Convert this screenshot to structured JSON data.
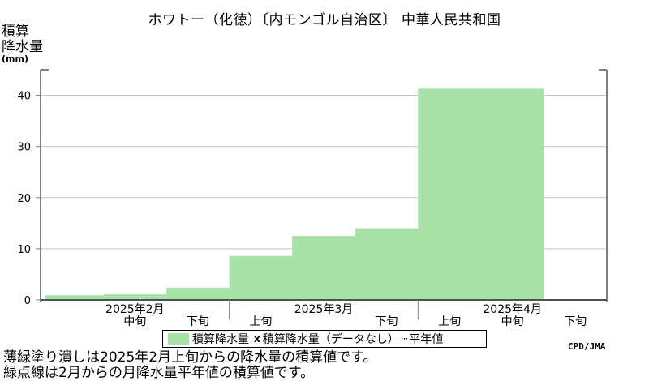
{
  "title": "ホワトー（化徳）〔内モンゴル自治区〕 中華人民共和国",
  "y_axis": {
    "label_line1": "積算",
    "label_line2": "降水量",
    "unit": "(mm)"
  },
  "legend": {
    "item1": "積算降水量",
    "item2_marker": "x",
    "item2": "積算降水量（データなし）",
    "item3": "平年値"
  },
  "source": "CPD/JMA",
  "notes": [
    "薄緑塗り潰しは2025年2月上旬からの降水量の積算値です。",
    "緑点線は2月からの月降水量平年値の積算値です。"
  ],
  "colors": {
    "fill": "#a9e2a9",
    "grid": "#c8c8c8",
    "axis": "#808080"
  },
  "chart_data": {
    "type": "area",
    "title": "ホワトー（化徳）〔内モンゴル自治区〕 中華人民共和国",
    "ylabel": "積算降水量 (mm)",
    "ylim": [
      0,
      45
    ],
    "yticks": [
      0,
      10,
      20,
      30,
      40
    ],
    "grid": true,
    "legend_position": "bottom",
    "months": [
      {
        "label": "2025年2月",
        "dekads": [
          "上旬",
          "中旬",
          "下旬"
        ]
      },
      {
        "label": "2025年3月",
        "dekads": [
          "上旬",
          "中旬",
          "下旬"
        ]
      },
      {
        "label": "2025年4月",
        "dekads": [
          "上旬",
          "中旬",
          "下旬"
        ]
      }
    ],
    "visible_dekad_labels": [
      {
        "month": 0,
        "dekad": 1
      },
      {
        "month": 0,
        "dekad": 2
      },
      {
        "month": 1,
        "dekad": 0
      },
      {
        "month": 1,
        "dekad": 2
      },
      {
        "month": 2,
        "dekad": 0
      },
      {
        "month": 2,
        "dekad": 1
      },
      {
        "month": 2,
        "dekad": 2
      }
    ],
    "series": [
      {
        "values": [
          0.9,
          1.1,
          2.4,
          8.6,
          12.5,
          14.0,
          41.3,
          41.3
        ]
      }
    ]
  }
}
